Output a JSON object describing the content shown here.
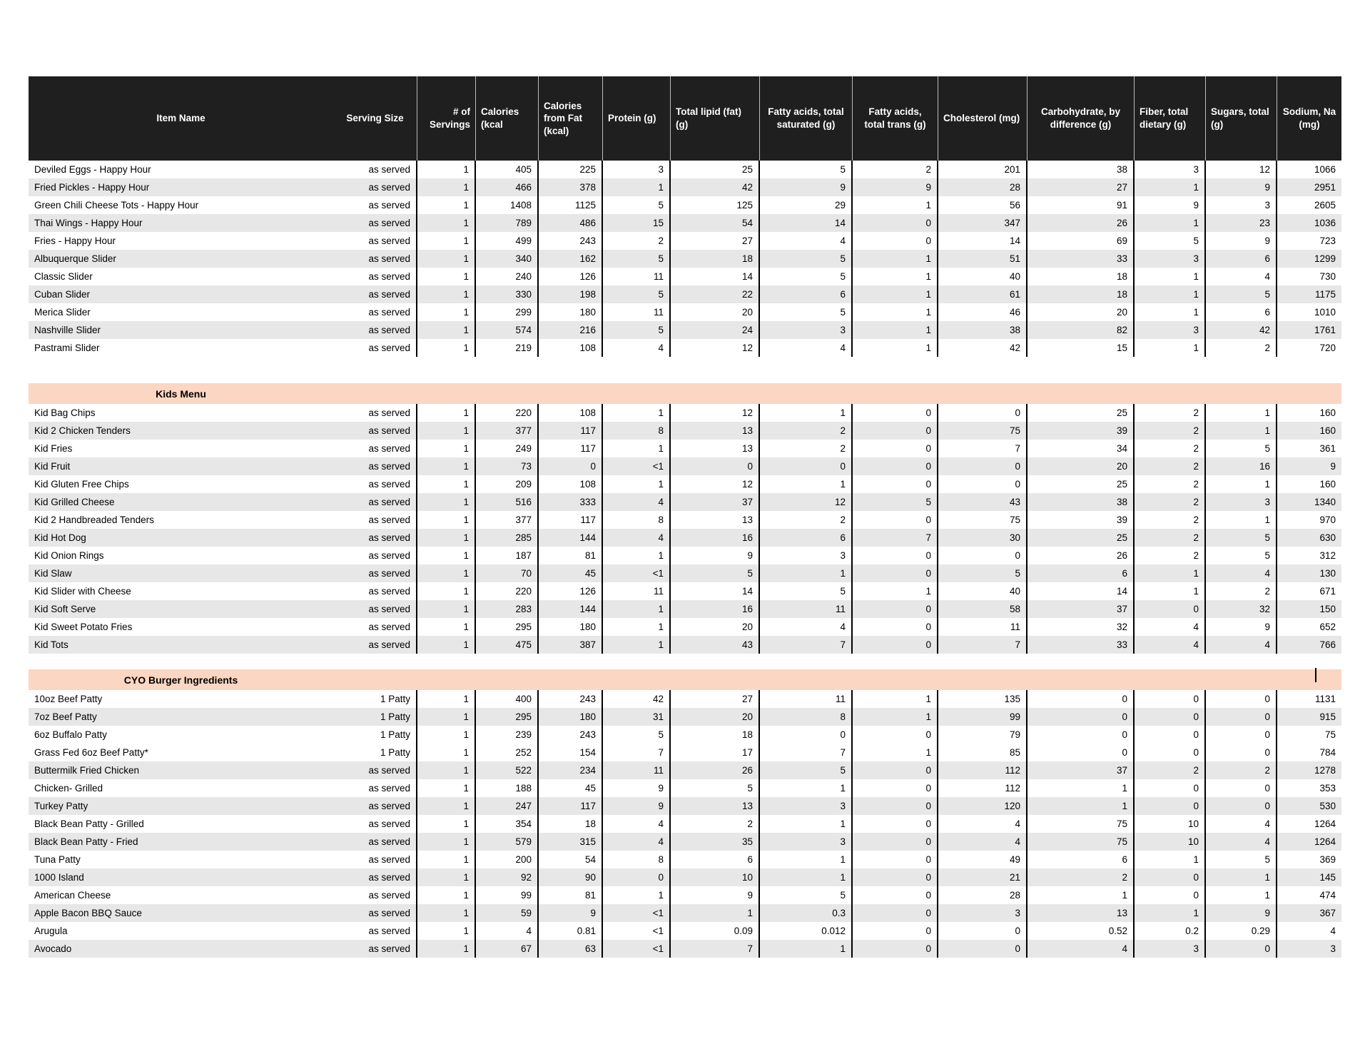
{
  "colors": {
    "header_bg": "#1f1f1f",
    "header_text": "#ffffff",
    "stripe": "#e7e7e7",
    "section_band": "#fbd6c2",
    "divider": "#000000"
  },
  "table": {
    "header": {
      "columns": [
        {
          "label": "Item Name",
          "halign": "center"
        },
        {
          "label": "Serving Size",
          "halign": "center"
        },
        {
          "label": "# of Servings",
          "halign": "right"
        },
        {
          "label": "Calories (kcal",
          "halign": "left"
        },
        {
          "label": "Calories from Fat (kcal)",
          "halign": "left"
        },
        {
          "label": "Protein (g)",
          "halign": "left"
        },
        {
          "label": "Total lipid (fat) (g)",
          "halign": "left"
        },
        {
          "label": "Fatty acids, total saturated (g)",
          "halign": "center"
        },
        {
          "label": "Fatty acids, total trans (g)",
          "halign": "center"
        },
        {
          "label": "Cholesterol (mg)",
          "halign": "left"
        },
        {
          "label": "Carbohydrate, by difference (g)",
          "halign": "center"
        },
        {
          "label": "Fiber, total dietary (g)",
          "halign": "left"
        },
        {
          "label": "Sugars, total (g)",
          "halign": "left"
        },
        {
          "label": "Sodium, Na (mg)",
          "halign": "center"
        }
      ]
    },
    "sections": [
      {
        "title": "",
        "rows": [
          {
            "item": "Deviled Eggs - Happy Hour",
            "serving": "as served",
            "shaded": false,
            "values": [
              "1",
              "405",
              "225",
              "3",
              "25",
              "5",
              "2",
              "201",
              "38",
              "3",
              "12",
              "1066"
            ]
          },
          {
            "item": "Fried Pickles - Happy Hour",
            "serving": "as served",
            "shaded": true,
            "values": [
              "1",
              "466",
              "378",
              "1",
              "42",
              "9",
              "9",
              "28",
              "27",
              "1",
              "9",
              "2951"
            ]
          },
          {
            "item": "Green Chili Cheese Tots - Happy Hour",
            "serving": "as served",
            "shaded": false,
            "values": [
              "1",
              "1408",
              "1125",
              "5",
              "125",
              "29",
              "1",
              "56",
              "91",
              "9",
              "3",
              "2605"
            ]
          },
          {
            "item": "Thai Wings - Happy Hour",
            "serving": "as served",
            "shaded": true,
            "values": [
              "1",
              "789",
              "486",
              "15",
              "54",
              "14",
              "0",
              "347",
              "26",
              "1",
              "23",
              "1036"
            ]
          },
          {
            "item": "Fries - Happy Hour",
            "serving": "as served",
            "shaded": false,
            "values": [
              "1",
              "499",
              "243",
              "2",
              "27",
              "4",
              "0",
              "14",
              "69",
              "5",
              "9",
              "723"
            ]
          },
          {
            "item": "Albuquerque Slider",
            "serving": "as served",
            "shaded": true,
            "values": [
              "1",
              "340",
              "162",
              "5",
              "18",
              "5",
              "1",
              "51",
              "33",
              "3",
              "6",
              "1299"
            ]
          },
          {
            "item": "Classic Slider",
            "serving": "as served",
            "shaded": false,
            "values": [
              "1",
              "240",
              "126",
              "11",
              "14",
              "5",
              "1",
              "40",
              "18",
              "1",
              "4",
              "730"
            ]
          },
          {
            "item": "Cuban Slider",
            "serving": "as served",
            "shaded": true,
            "values": [
              "1",
              "330",
              "198",
              "5",
              "22",
              "6",
              "1",
              "61",
              "18",
              "1",
              "5",
              "1175"
            ]
          },
          {
            "item": "Merica Slider",
            "serving": "as served",
            "shaded": false,
            "values": [
              "1",
              "299",
              "180",
              "11",
              "20",
              "5",
              "1",
              "46",
              "20",
              "1",
              "6",
              "1010"
            ]
          },
          {
            "item": "Nashville Slider",
            "serving": "as served",
            "shaded": true,
            "values": [
              "1",
              "574",
              "216",
              "5",
              "24",
              "3",
              "1",
              "38",
              "82",
              "3",
              "42",
              "1761"
            ]
          },
          {
            "item": "Pastrami Slider",
            "serving": "as served",
            "shaded": false,
            "values": [
              "1",
              "219",
              "108",
              "4",
              "12",
              "4",
              "1",
              "42",
              "15",
              "1",
              "2",
              "720"
            ]
          }
        ]
      },
      {
        "title": "Kids Menu",
        "rows": [
          {
            "item": "Kid Bag Chips",
            "serving": "as served",
            "shaded": false,
            "values": [
              "1",
              "220",
              "108",
              "1",
              "12",
              "1",
              "0",
              "0",
              "25",
              "2",
              "1",
              "160"
            ]
          },
          {
            "item": "Kid 2 Chicken Tenders",
            "serving": "as served",
            "shaded": true,
            "values": [
              "1",
              "377",
              "117",
              "8",
              "13",
              "2",
              "0",
              "75",
              "39",
              "2",
              "1",
              "160"
            ]
          },
          {
            "item": "Kid Fries",
            "serving": "as served",
            "shaded": false,
            "values": [
              "1",
              "249",
              "117",
              "1",
              "13",
              "2",
              "0",
              "7",
              "34",
              "2",
              "5",
              "361"
            ]
          },
          {
            "item": "Kid Fruit",
            "serving": "as served",
            "shaded": true,
            "values": [
              "1",
              "73",
              "0",
              "<1",
              "0",
              "0",
              "0",
              "0",
              "20",
              "2",
              "16",
              "9"
            ]
          },
          {
            "item": "Kid Gluten Free Chips",
            "serving": "as served",
            "shaded": false,
            "values": [
              "1",
              "209",
              "108",
              "1",
              "12",
              "1",
              "0",
              "0",
              "25",
              "2",
              "1",
              "160"
            ]
          },
          {
            "item": "Kid Grilled Cheese",
            "serving": "as served",
            "shaded": true,
            "values": [
              "1",
              "516",
              "333",
              "4",
              "37",
              "12",
              "5",
              "43",
              "38",
              "2",
              "3",
              "1340"
            ]
          },
          {
            "item": "Kid 2 Handbreaded Tenders",
            "serving": "as served",
            "shaded": false,
            "values": [
              "1",
              "377",
              "117",
              "8",
              "13",
              "2",
              "0",
              "75",
              "39",
              "2",
              "1",
              "970"
            ]
          },
          {
            "item": "Kid Hot Dog",
            "serving": "as served",
            "shaded": true,
            "values": [
              "1",
              "285",
              "144",
              "4",
              "16",
              "6",
              "7",
              "30",
              "25",
              "2",
              "5",
              "630"
            ]
          },
          {
            "item": "Kid Onion Rings",
            "serving": "as served",
            "shaded": false,
            "values": [
              "1",
              "187",
              "81",
              "1",
              "9",
              "3",
              "0",
              "0",
              "26",
              "2",
              "5",
              "312"
            ]
          },
          {
            "item": "Kid Slaw",
            "serving": "as served",
            "shaded": true,
            "values": [
              "1",
              "70",
              "45",
              "<1",
              "5",
              "1",
              "0",
              "5",
              "6",
              "1",
              "4",
              "130"
            ]
          },
          {
            "item": "Kid Slider with Cheese",
            "serving": "as served",
            "shaded": false,
            "values": [
              "1",
              "220",
              "126",
              "11",
              "14",
              "5",
              "1",
              "40",
              "14",
              "1",
              "2",
              "671"
            ]
          },
          {
            "item": "Kid Soft Serve",
            "serving": "as served",
            "shaded": true,
            "values": [
              "1",
              "283",
              "144",
              "1",
              "16",
              "11",
              "0",
              "58",
              "37",
              "0",
              "32",
              "150"
            ]
          },
          {
            "item": "Kid Sweet Potato Fries",
            "serving": "as served",
            "shaded": false,
            "values": [
              "1",
              "295",
              "180",
              "1",
              "20",
              "4",
              "0",
              "11",
              "32",
              "4",
              "9",
              "652"
            ]
          },
          {
            "item": "Kid Tots",
            "serving": "as served",
            "shaded": true,
            "values": [
              "1",
              "475",
              "387",
              "1",
              "43",
              "7",
              "0",
              "7",
              "33",
              "4",
              "4",
              "766"
            ]
          }
        ]
      },
      {
        "title": "CYO Burger Ingredients",
        "rows": [
          {
            "item": "10oz Beef Patty",
            "serving": "1 Patty",
            "shaded": false,
            "values": [
              "1",
              "400",
              "243",
              "42",
              "27",
              "11",
              "1",
              "135",
              "0",
              "0",
              "0",
              "1131"
            ]
          },
          {
            "item": "7oz Beef Patty",
            "serving": "1 Patty",
            "shaded": true,
            "values": [
              "1",
              "295",
              "180",
              "31",
              "20",
              "8",
              "1",
              "99",
              "0",
              "0",
              "0",
              "915"
            ]
          },
          {
            "item": "6oz Buffalo Patty",
            "serving": "1 Patty",
            "shaded": false,
            "values": [
              "1",
              "239",
              "243",
              "5",
              "18",
              "0",
              "0",
              "79",
              "0",
              "0",
              "0",
              "75"
            ]
          },
          {
            "item": "Grass Fed 6oz Beef Patty*",
            "serving": "1 Patty",
            "shaded": false,
            "values": [
              "1",
              "252",
              "154",
              "7",
              "17",
              "7",
              "1",
              "85",
              "0",
              "0",
              "0",
              "784"
            ]
          },
          {
            "item": "Buttermilk Fried Chicken",
            "serving": "as served",
            "shaded": true,
            "values": [
              "1",
              "522",
              "234",
              "11",
              "26",
              "5",
              "0",
              "112",
              "37",
              "2",
              "2",
              "1278"
            ]
          },
          {
            "item": "Chicken- Grilled",
            "serving": "as served",
            "shaded": false,
            "values": [
              "1",
              "188",
              "45",
              "9",
              "5",
              "1",
              "0",
              "112",
              "1",
              "0",
              "0",
              "353"
            ]
          },
          {
            "item": "Turkey Patty",
            "serving": "as served",
            "shaded": true,
            "values": [
              "1",
              "247",
              "117",
              "9",
              "13",
              "3",
              "0",
              "120",
              "1",
              "0",
              "0",
              "530"
            ]
          },
          {
            "item": "Black Bean Patty - Grilled",
            "serving": "as served",
            "shaded": false,
            "values": [
              "1",
              "354",
              "18",
              "4",
              "2",
              "1",
              "0",
              "4",
              "75",
              "10",
              "4",
              "1264"
            ]
          },
          {
            "item": "Black Bean Patty - Fried",
            "serving": "as served",
            "shaded": true,
            "values": [
              "1",
              "579",
              "315",
              "4",
              "35",
              "3",
              "0",
              "4",
              "75",
              "10",
              "4",
              "1264"
            ]
          },
          {
            "item": "Tuna Patty",
            "serving": "as served",
            "shaded": false,
            "values": [
              "1",
              "200",
              "54",
              "8",
              "6",
              "1",
              "0",
              "49",
              "6",
              "1",
              "5",
              "369"
            ]
          },
          {
            "item": "1000 Island",
            "serving": "as served",
            "shaded": true,
            "values": [
              "1",
              "92",
              "90",
              "0",
              "10",
              "1",
              "0",
              "21",
              "2",
              "0",
              "1",
              "145"
            ]
          },
          {
            "item": "American Cheese",
            "serving": "as served",
            "shaded": false,
            "values": [
              "1",
              "99",
              "81",
              "1",
              "9",
              "5",
              "0",
              "28",
              "1",
              "0",
              "1",
              "474"
            ]
          },
          {
            "item": "Apple Bacon BBQ Sauce",
            "serving": "as served",
            "shaded": true,
            "values": [
              "1",
              "59",
              "9",
              "<1",
              "1",
              "0.3",
              "0",
              "3",
              "13",
              "1",
              "9",
              "367"
            ]
          },
          {
            "item": "Arugula",
            "serving": "as served",
            "shaded": false,
            "values": [
              "1",
              "4",
              "0.81",
              "<1",
              "0.09",
              "0.012",
              "0",
              "0",
              "0.52",
              "0.2",
              "0.29",
              "4"
            ]
          },
          {
            "item": "Avocado",
            "serving": "as served",
            "shaded": true,
            "values": [
              "1",
              "67",
              "63",
              "<1",
              "7",
              "1",
              "0",
              "0",
              "4",
              "3",
              "0",
              "3"
            ]
          }
        ]
      }
    ]
  }
}
